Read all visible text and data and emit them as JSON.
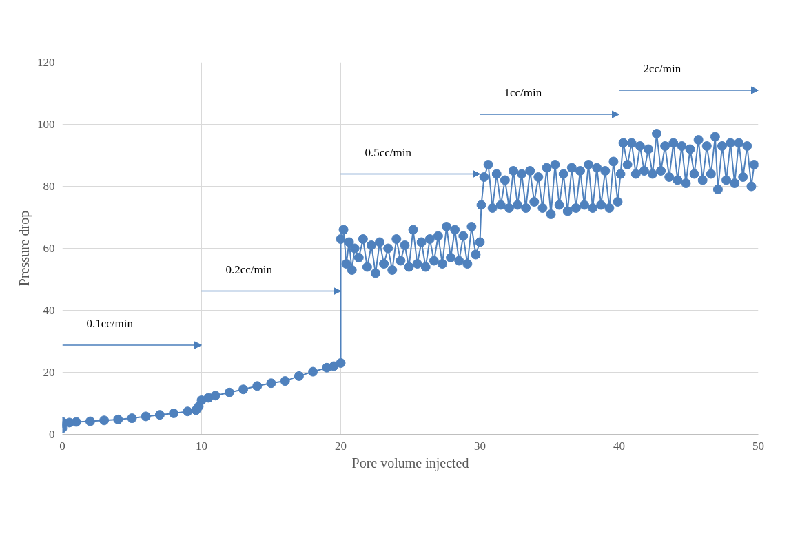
{
  "chart_data": {
    "type": "line",
    "xlabel": "Pore volume injected",
    "ylabel": "Pressure drop",
    "xlim": [
      0,
      50
    ],
    "xticks": [
      0,
      10,
      20,
      30,
      40,
      50
    ],
    "ylim": [
      0,
      120
    ],
    "yticks": [
      0,
      20,
      40,
      60,
      80,
      100,
      120
    ],
    "grid": true,
    "marker": "circle",
    "line_style": "solid",
    "annotations": [
      "0.1cc/min",
      "0.2cc/min",
      "0.5cc/min",
      "1cc/min",
      "2cc/min"
    ],
    "series": [
      {
        "color": "#4f81bd",
        "x": [
          0,
          0,
          0.5,
          1,
          2,
          3,
          4,
          5,
          6,
          7,
          8,
          9,
          9.6,
          9.8,
          10,
          10.5,
          11,
          12,
          13,
          14,
          15,
          16,
          17,
          18,
          19,
          19.5,
          20,
          20,
          20.2,
          20.4,
          20.6,
          20.8,
          21,
          21.3,
          21.6,
          21.9,
          22.2,
          22.5,
          22.8,
          23.1,
          23.4,
          23.7,
          24,
          24.3,
          24.6,
          24.9,
          25.2,
          25.5,
          25.8,
          26.1,
          26.4,
          26.7,
          27,
          27.3,
          27.6,
          27.9,
          28.2,
          28.5,
          28.8,
          29.1,
          29.4,
          29.7,
          30,
          30.1,
          30.3,
          30.6,
          30.9,
          31.2,
          31.5,
          31.8,
          32.1,
          32.4,
          32.7,
          33,
          33.3,
          33.6,
          33.9,
          34.2,
          34.5,
          34.8,
          35.1,
          35.4,
          35.7,
          36,
          36.3,
          36.6,
          36.9,
          37.2,
          37.5,
          37.8,
          38.1,
          38.4,
          38.7,
          39,
          39.3,
          39.6,
          39.9,
          40.1,
          40.3,
          40.6,
          40.9,
          41.2,
          41.5,
          41.8,
          42.1,
          42.4,
          42.7,
          43,
          43.3,
          43.6,
          43.9,
          44.2,
          44.5,
          44.8,
          45.1,
          45.4,
          45.7,
          46,
          46.3,
          46.6,
          46.9,
          47.1,
          47.4,
          47.7,
          48,
          48.3,
          48.6,
          48.9,
          49.2,
          49.5,
          49.7
        ],
        "values": [
          2,
          4,
          3.8,
          4,
          4.2,
          4.5,
          4.8,
          5.2,
          5.8,
          6.3,
          6.8,
          7.4,
          7.8,
          9,
          11,
          11.8,
          12.5,
          13.5,
          14.5,
          15.6,
          16.5,
          17.2,
          18.8,
          20.2,
          21.5,
          22,
          23,
          63,
          66,
          55,
          62,
          53,
          60,
          57,
          63,
          54,
          61,
          52,
          62,
          55,
          60,
          53,
          63,
          56,
          61,
          54,
          66,
          55,
          62,
          54,
          63,
          56,
          64,
          55,
          67,
          57,
          66,
          56,
          64,
          55,
          67,
          58,
          62,
          74,
          83,
          87,
          73,
          84,
          74,
          82,
          73,
          85,
          74,
          84,
          73,
          85,
          75,
          83,
          73,
          86,
          71,
          87,
          74,
          84,
          72,
          86,
          73,
          85,
          74,
          87,
          73,
          86,
          74,
          85,
          73,
          88,
          75,
          84,
          94,
          87,
          94,
          84,
          93,
          85,
          92,
          84,
          97,
          85,
          93,
          83,
          94,
          82,
          93,
          81,
          92,
          84,
          95,
          82,
          93,
          84,
          96,
          79,
          93,
          82,
          94,
          81,
          94,
          83,
          93,
          80,
          87
        ]
      }
    ]
  }
}
